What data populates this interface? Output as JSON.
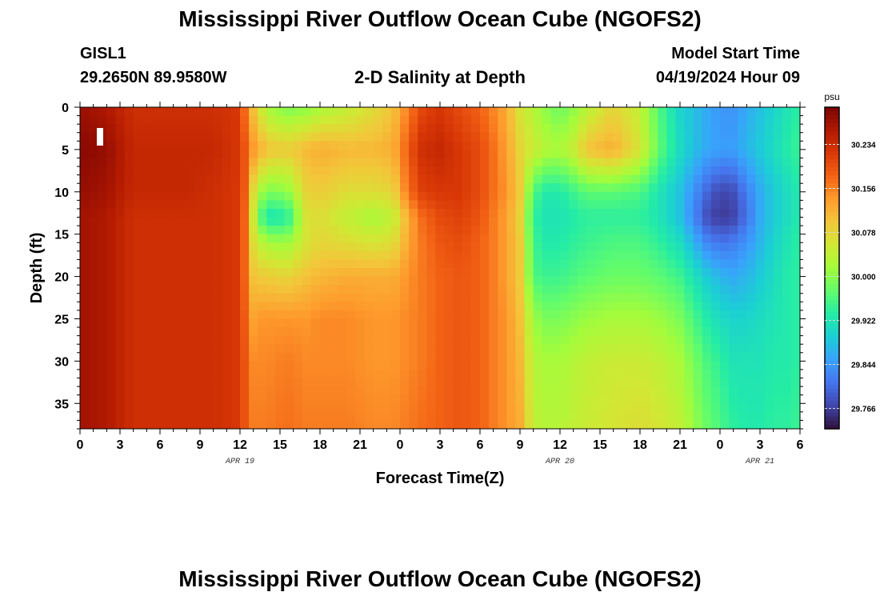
{
  "header": {
    "title": "Mississippi River Outflow Ocean Cube (NGOFS2)",
    "station": "GISL1",
    "coords": "29.2650N  89.9580W",
    "subtitle": "2-D Salinity at Depth",
    "model_start_label": "Model Start Time",
    "model_start_value": "04/19/2024 Hour 09"
  },
  "footer": {
    "title": "Mississippi River Outflow Ocean Cube (NGOFS2)"
  },
  "chart_data": {
    "type": "heatmap",
    "title": "2-D Salinity at Depth",
    "xlabel": "Forecast Time(Z)",
    "ylabel": "Depth (ft)",
    "x_tick_labels": [
      "0",
      "3",
      "6",
      "9",
      "12",
      "15",
      "18",
      "21",
      "0",
      "3",
      "6",
      "9",
      "12",
      "15",
      "18",
      "21",
      "0",
      "3",
      "6"
    ],
    "x_date_labels": [
      {
        "label": "APR 19",
        "hour_index": 12
      },
      {
        "label": "APR 20",
        "hour_index": 36
      },
      {
        "label": "APR 21",
        "hour_index": 51
      }
    ],
    "x_range_hours": [
      0,
      54
    ],
    "y_tick_labels": [
      "0",
      "5",
      "10",
      "15",
      "20",
      "25",
      "30",
      "35"
    ],
    "ylim": [
      0,
      38
    ],
    "colorbar": {
      "unit": "psu",
      "min": 29.73,
      "max": 30.3,
      "tick_values": [
        "30.234",
        "30.156",
        "30.078",
        "30.000",
        "29.922",
        "29.844",
        "29.766"
      ],
      "colormap": [
        "#30123b",
        "#4145ab",
        "#4675ed",
        "#39a2fc",
        "#1bcfd4",
        "#24eca6",
        "#61fc6c",
        "#a4fc3b",
        "#d1e834",
        "#f3c63a",
        "#fe9b2d",
        "#f36315",
        "#d93806",
        "#b11901",
        "#7a0403"
      ]
    },
    "salinity_grid": {
      "depth_ft": [
        0,
        5,
        10,
        13,
        16,
        20,
        25,
        30,
        38
      ],
      "hours": [
        0,
        2,
        4,
        6,
        8,
        10,
        12,
        12.5,
        13,
        13.5,
        14,
        15.5,
        17,
        18,
        20,
        22,
        23.5,
        24.5,
        25.5,
        27,
        28.5,
        30,
        31,
        32,
        33,
        34,
        35,
        36,
        37,
        38,
        40,
        42,
        43.5,
        45,
        46,
        47,
        48,
        49,
        50,
        51,
        52,
        53,
        54
      ],
      "values": [
        [
          30.275,
          30.26,
          30.23,
          30.23,
          30.23,
          30.23,
          30.22,
          30.15,
          30.1,
          30.06,
          30.02,
          29.99,
          30.0,
          30.02,
          30.04,
          30.07,
          30.1,
          30.15,
          30.2,
          30.22,
          30.2,
          30.18,
          30.15,
          30.12,
          30.06,
          30.03,
          30.0,
          29.98,
          30.0,
          30.03,
          30.08,
          30.04,
          29.96,
          29.9,
          29.88,
          29.86,
          29.84,
          29.84,
          29.86,
          29.88,
          29.9,
          29.92,
          29.94
        ],
        [
          30.29,
          30.28,
          30.24,
          30.24,
          30.24,
          30.24,
          30.22,
          30.18,
          30.14,
          30.12,
          30.1,
          30.09,
          30.11,
          30.12,
          30.11,
          30.11,
          30.12,
          30.18,
          30.23,
          30.24,
          30.22,
          30.2,
          30.17,
          30.13,
          30.08,
          30.05,
          30.03,
          30.02,
          30.05,
          30.1,
          30.12,
          30.06,
          29.97,
          29.91,
          29.88,
          29.86,
          29.85,
          29.85,
          29.87,
          29.89,
          29.91,
          29.93,
          29.95
        ],
        [
          30.28,
          30.27,
          30.24,
          30.24,
          30.24,
          30.23,
          30.22,
          30.17,
          30.07,
          30.02,
          29.99,
          30.0,
          30.08,
          30.09,
          30.07,
          30.07,
          30.08,
          30.16,
          30.21,
          30.22,
          30.22,
          30.2,
          30.17,
          30.14,
          30.09,
          29.96,
          29.93,
          29.93,
          29.95,
          29.97,
          29.97,
          29.96,
          29.92,
          29.88,
          29.84,
          29.8,
          29.77,
          29.78,
          29.82,
          29.86,
          29.89,
          29.91,
          29.93
        ],
        [
          30.27,
          30.26,
          30.23,
          30.23,
          30.23,
          30.23,
          30.22,
          30.16,
          30.05,
          29.97,
          29.92,
          29.93,
          30.06,
          30.07,
          30.04,
          30.02,
          30.04,
          30.11,
          30.17,
          30.2,
          30.21,
          30.19,
          30.16,
          30.13,
          30.08,
          29.94,
          29.92,
          29.92,
          29.93,
          29.94,
          29.94,
          29.94,
          29.92,
          29.88,
          29.83,
          29.78,
          29.76,
          29.77,
          29.81,
          29.86,
          29.89,
          29.91,
          29.93
        ],
        [
          30.27,
          30.26,
          30.23,
          30.23,
          30.23,
          30.23,
          30.22,
          30.16,
          30.07,
          30.04,
          30.02,
          30.01,
          30.06,
          30.08,
          30.07,
          30.06,
          30.07,
          30.12,
          30.16,
          30.19,
          30.2,
          30.18,
          30.16,
          30.13,
          30.09,
          29.95,
          29.93,
          29.93,
          29.94,
          29.95,
          29.96,
          29.96,
          29.94,
          29.91,
          29.87,
          29.83,
          29.81,
          29.82,
          29.84,
          29.87,
          29.9,
          29.92,
          29.94
        ],
        [
          30.27,
          30.26,
          30.23,
          30.23,
          30.23,
          30.23,
          30.22,
          30.16,
          30.1,
          30.09,
          30.09,
          30.08,
          30.1,
          30.11,
          30.12,
          30.12,
          30.12,
          30.14,
          30.16,
          30.18,
          30.19,
          30.18,
          30.16,
          30.13,
          30.09,
          29.96,
          29.95,
          29.95,
          29.96,
          29.97,
          29.98,
          29.98,
          29.97,
          29.95,
          29.92,
          29.89,
          29.87,
          29.86,
          29.87,
          29.89,
          29.91,
          29.93,
          29.94
        ],
        [
          30.27,
          30.26,
          30.23,
          30.23,
          30.23,
          30.23,
          30.22,
          30.17,
          30.13,
          30.14,
          30.14,
          30.14,
          30.14,
          30.15,
          30.15,
          30.14,
          30.14,
          30.15,
          30.16,
          30.18,
          30.19,
          30.18,
          30.16,
          30.14,
          30.1,
          30.01,
          29.99,
          29.99,
          30.0,
          30.01,
          30.02,
          30.02,
          30.01,
          29.99,
          29.96,
          29.93,
          29.91,
          29.9,
          29.9,
          29.91,
          29.92,
          29.93,
          29.94
        ],
        [
          30.27,
          30.26,
          30.23,
          30.23,
          30.23,
          30.23,
          30.22,
          30.18,
          30.15,
          30.15,
          30.15,
          30.16,
          30.15,
          30.15,
          30.15,
          30.14,
          30.14,
          30.15,
          30.16,
          30.18,
          30.19,
          30.18,
          30.16,
          30.14,
          30.11,
          30.03,
          30.02,
          30.02,
          30.03,
          30.04,
          30.05,
          30.05,
          30.04,
          30.02,
          29.99,
          29.96,
          29.94,
          29.92,
          29.92,
          29.92,
          29.93,
          29.93,
          29.94
        ],
        [
          30.27,
          30.26,
          30.23,
          30.23,
          30.23,
          30.23,
          30.22,
          30.18,
          30.16,
          30.16,
          30.16,
          30.17,
          30.16,
          30.16,
          30.16,
          30.15,
          30.15,
          30.16,
          30.17,
          30.18,
          30.19,
          30.18,
          30.16,
          30.14,
          30.12,
          30.04,
          30.03,
          30.03,
          30.04,
          30.05,
          30.06,
          30.07,
          30.06,
          30.04,
          30.01,
          29.98,
          29.96,
          29.94,
          29.93,
          29.93,
          29.94,
          29.94,
          29.95
        ]
      ]
    }
  }
}
